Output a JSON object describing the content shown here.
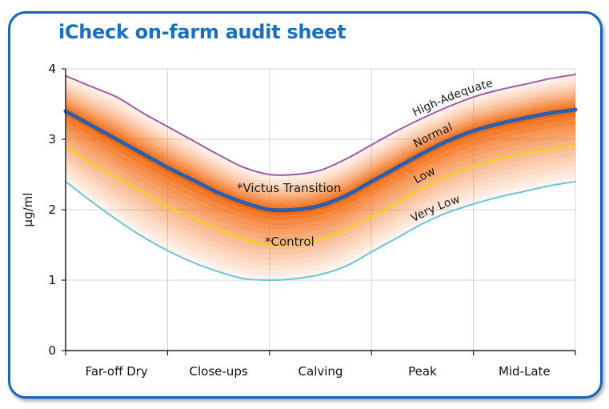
{
  "title": "iCheck on-farm audit sheet",
  "chart_data": {
    "type": "line",
    "title": "iCheck on-farm audit sheet",
    "xlabel": "",
    "ylabel": "µg/ml",
    "ylim": [
      0,
      4
    ],
    "yticks": [
      "0",
      "1",
      "2",
      "3",
      "4"
    ],
    "categories": [
      "Far-off Dry",
      "Close-ups",
      "Calving",
      "Peak",
      "Mid-Late"
    ],
    "x": [
      0,
      0.25,
      0.5,
      0.75,
      1,
      1.25,
      1.5,
      1.75,
      2,
      2.25,
      2.5,
      2.75,
      3,
      3.25,
      3.5,
      3.75,
      4,
      4.25,
      4.5,
      4.75,
      5
    ],
    "grid": true,
    "series": [
      {
        "name": "High-Adequate",
        "color": "#a05aa6",
        "values": [
          3.9,
          3.75,
          3.6,
          3.38,
          3.18,
          2.98,
          2.78,
          2.6,
          2.5,
          2.5,
          2.56,
          2.72,
          2.92,
          3.12,
          3.3,
          3.46,
          3.6,
          3.7,
          3.78,
          3.86,
          3.92
        ]
      },
      {
        "name": "Normal",
        "color": "#2e5fa8",
        "values": [
          3.4,
          3.2,
          3.0,
          2.8,
          2.6,
          2.42,
          2.24,
          2.1,
          2.0,
          2.0,
          2.06,
          2.2,
          2.4,
          2.6,
          2.8,
          2.98,
          3.12,
          3.22,
          3.3,
          3.37,
          3.42
        ]
      },
      {
        "name": "Low",
        "color": "#f5d020",
        "values": [
          2.9,
          2.66,
          2.46,
          2.25,
          2.05,
          1.88,
          1.72,
          1.58,
          1.5,
          1.52,
          1.58,
          1.72,
          1.9,
          2.1,
          2.3,
          2.48,
          2.62,
          2.72,
          2.8,
          2.86,
          2.92
        ]
      },
      {
        "name": "Very Low",
        "color": "#6cc6d8",
        "values": [
          2.4,
          2.12,
          1.86,
          1.62,
          1.42,
          1.25,
          1.12,
          1.02,
          1.0,
          1.02,
          1.08,
          1.2,
          1.4,
          1.6,
          1.8,
          1.96,
          2.08,
          2.18,
          2.26,
          2.34,
          2.4
        ]
      }
    ],
    "annotations": [
      {
        "text": "*Victus Transition"
      },
      {
        "text": "*Control"
      }
    ]
  }
}
